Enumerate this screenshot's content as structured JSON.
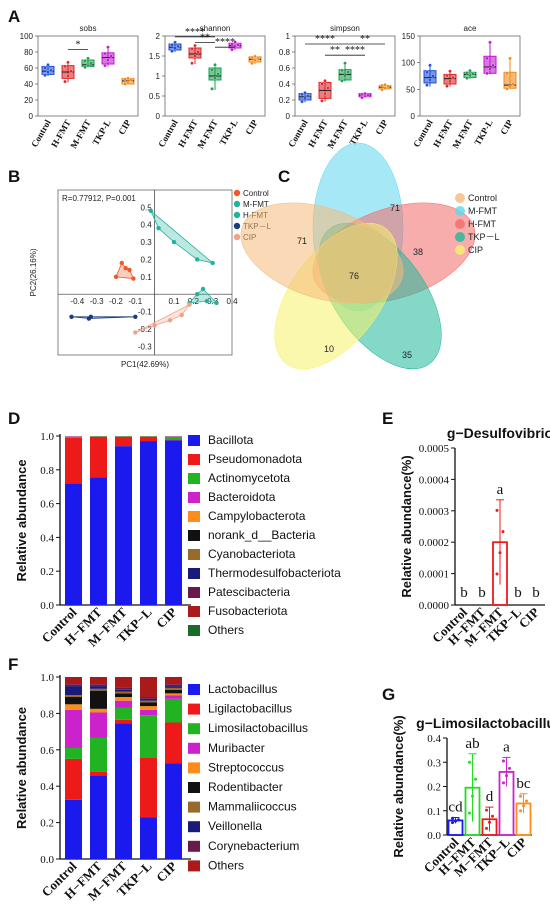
{
  "panels": {
    "A": "A",
    "B": "B",
    "C": "C",
    "D": "D",
    "E": "E",
    "F": "F",
    "G": "G"
  },
  "chart_data": [
    {
      "type": "box",
      "panel": "A",
      "title": "sobs",
      "categories": [
        "Control",
        "H-FMT",
        "M-FMT",
        "TKP-L",
        "CIP"
      ],
      "colors": [
        "#1f4fd8",
        "#e0262a",
        "#1aa04e",
        "#c21ad0",
        "#f08a1a"
      ],
      "ylim": [
        0,
        100
      ],
      "yticks": [
        0,
        20,
        40,
        60,
        80,
        100
      ],
      "boxes": [
        {
          "q1": 52,
          "med": 56,
          "q3": 62,
          "min": 50,
          "max": 65,
          "pts": [
            51,
            55,
            57,
            60,
            64
          ]
        },
        {
          "q1": 47,
          "med": 55,
          "q3": 63,
          "min": 42,
          "max": 68,
          "pts": [
            43,
            50,
            56,
            62,
            67
          ]
        },
        {
          "q1": 62,
          "med": 64,
          "q3": 70,
          "min": 61,
          "max": 73,
          "pts": [
            61,
            63,
            66,
            69,
            72
          ]
        },
        {
          "q1": 65,
          "med": 73,
          "q3": 79,
          "min": 62,
          "max": 88,
          "pts": [
            63,
            70,
            75,
            78,
            86
          ]
        },
        {
          "q1": 40,
          "med": 44,
          "q3": 47,
          "min": 39,
          "max": 48,
          "pts": [
            40,
            42,
            45,
            46,
            47
          ]
        }
      ],
      "significance": [
        {
          "from": 1,
          "to": 2,
          "label": "*",
          "y": 83
        }
      ]
    },
    {
      "type": "box",
      "panel": "A",
      "title": "shannon",
      "categories": [
        "Control",
        "H-FMT",
        "M-FMT",
        "TKP-L",
        "CIP"
      ],
      "colors": [
        "#1f4fd8",
        "#e0262a",
        "#1aa04e",
        "#c21ad0",
        "#f08a1a"
      ],
      "ylim": [
        0,
        2.0
      ],
      "yticks": [
        0.0,
        0.5,
        1.0,
        1.5,
        2.0
      ],
      "boxes": [
        {
          "q1": 1.65,
          "med": 1.72,
          "q3": 1.8,
          "min": 1.6,
          "max": 1.85,
          "pts": [
            1.62,
            1.7,
            1.74,
            1.78,
            1.84
          ]
        },
        {
          "q1": 1.45,
          "med": 1.55,
          "q3": 1.7,
          "min": 1.3,
          "max": 1.78,
          "pts": [
            1.32,
            1.5,
            1.6,
            1.68,
            1.76
          ]
        },
        {
          "q1": 0.9,
          "med": 1.0,
          "q3": 1.2,
          "min": 0.65,
          "max": 1.3,
          "pts": [
            0.68,
            0.95,
            1.05,
            1.15,
            1.28
          ]
        },
        {
          "q1": 1.7,
          "med": 1.76,
          "q3": 1.82,
          "min": 1.65,
          "max": 1.86,
          "pts": [
            1.66,
            1.74,
            1.78,
            1.8,
            1.85
          ]
        },
        {
          "q1": 1.35,
          "med": 1.42,
          "q3": 1.48,
          "min": 1.3,
          "max": 1.5,
          "pts": [
            1.32,
            1.4,
            1.44,
            1.46,
            1.49
          ]
        }
      ],
      "significance": [
        {
          "from": 0,
          "to": 2,
          "label": "****",
          "y": 1.98
        },
        {
          "from": 1,
          "to": 2,
          "label": "**",
          "y": 1.84
        },
        {
          "from": 2,
          "to": 3,
          "label": "****",
          "y": 1.72
        }
      ]
    },
    {
      "type": "box",
      "panel": "A",
      "title": "simpson",
      "categories": [
        "Control",
        "H-FMT",
        "M-FMT",
        "TKP-L",
        "CIP"
      ],
      "colors": [
        "#1f4fd8",
        "#e0262a",
        "#1aa04e",
        "#c21ad0",
        "#f08a1a"
      ],
      "ylim": [
        0,
        1.0
      ],
      "yticks": [
        0.0,
        0.2,
        0.4,
        0.6,
        0.8,
        1.0
      ],
      "boxes": [
        {
          "q1": 0.2,
          "med": 0.24,
          "q3": 0.28,
          "min": 0.17,
          "max": 0.3,
          "pts": [
            0.18,
            0.22,
            0.25,
            0.27,
            0.29
          ]
        },
        {
          "q1": 0.22,
          "med": 0.32,
          "q3": 0.42,
          "min": 0.18,
          "max": 0.45,
          "pts": [
            0.19,
            0.28,
            0.35,
            0.4,
            0.44
          ]
        },
        {
          "q1": 0.45,
          "med": 0.52,
          "q3": 0.58,
          "min": 0.43,
          "max": 0.68,
          "pts": [
            0.44,
            0.5,
            0.55,
            0.57,
            0.66
          ]
        },
        {
          "q1": 0.24,
          "med": 0.26,
          "q3": 0.28,
          "min": 0.23,
          "max": 0.29,
          "pts": [
            0.23,
            0.25,
            0.26,
            0.27,
            0.28
          ]
        },
        {
          "q1": 0.34,
          "med": 0.36,
          "q3": 0.38,
          "min": 0.33,
          "max": 0.39,
          "pts": [
            0.33,
            0.35,
            0.37,
            0.38,
            0.39
          ]
        }
      ],
      "significance": [
        {
          "from": 0,
          "to": 2,
          "label": "****",
          "y": 0.9
        },
        {
          "from": 2,
          "to": 4,
          "label": "**",
          "y": 0.9
        },
        {
          "from": 1,
          "to": 2,
          "label": "**",
          "y": 0.76
        },
        {
          "from": 2,
          "to": 3,
          "label": "****",
          "y": 0.76
        }
      ]
    },
    {
      "type": "box",
      "panel": "A",
      "title": "ace",
      "categories": [
        "Control",
        "H-FMT",
        "M-FMT",
        "TKP-L",
        "CIP"
      ],
      "colors": [
        "#1f4fd8",
        "#e0262a",
        "#1aa04e",
        "#c21ad0",
        "#f08a1a"
      ],
      "ylim": [
        0,
        150
      ],
      "yticks": [
        0,
        50,
        100,
        150
      ],
      "boxes": [
        {
          "q1": 62,
          "med": 72,
          "q3": 85,
          "min": 55,
          "max": 98,
          "pts": [
            58,
            68,
            75,
            82,
            95
          ]
        },
        {
          "q1": 60,
          "med": 70,
          "q3": 78,
          "min": 55,
          "max": 85,
          "pts": [
            56,
            65,
            72,
            76,
            84
          ]
        },
        {
          "q1": 72,
          "med": 78,
          "q3": 82,
          "min": 70,
          "max": 86,
          "pts": [
            71,
            76,
            79,
            81,
            85
          ]
        },
        {
          "q1": 80,
          "med": 92,
          "q3": 112,
          "min": 78,
          "max": 140,
          "pts": [
            80,
            88,
            95,
            108,
            138
          ]
        },
        {
          "q1": 52,
          "med": 58,
          "q3": 82,
          "min": 50,
          "max": 110,
          "pts": [
            51,
            55,
            60,
            80,
            108
          ]
        }
      ],
      "significance": []
    },
    {
      "type": "scatter",
      "panel": "B",
      "annotation": "R=0.77912, P=0.001",
      "xlabel": "PC1(42.69%)",
      "ylabel": "PC2(26.16%)",
      "xlim": [
        -0.5,
        0.4
      ],
      "ylim": [
        -0.35,
        0.6
      ],
      "xticks": [
        "-0.4",
        "-0.3",
        "-0.2",
        "-0.1",
        "0.1",
        "0.2",
        "0.3",
        "0.4"
      ],
      "xtick_values": [
        -0.4,
        -0.3,
        -0.2,
        -0.1,
        0.1,
        0.2,
        0.3,
        0.4
      ],
      "yticks": [
        "-0.3",
        "-0.2",
        "-0.1",
        "0.1",
        "0.2",
        "0.3",
        "0.4",
        "0.5"
      ],
      "ytick_values": [
        -0.3,
        -0.2,
        -0.1,
        0.1,
        0.2,
        0.3,
        0.4,
        0.5
      ],
      "series": [
        {
          "name": "Control",
          "color": "#f0582a",
          "points": [
            [
              -0.17,
              0.18
            ],
            [
              -0.15,
              0.15
            ],
            [
              -0.13,
              0.14
            ],
            [
              -0.11,
              0.09
            ],
            [
              -0.2,
              0.1
            ]
          ]
        },
        {
          "name": "M-FMT",
          "color": "#23b39d",
          "points": [
            [
              -0.02,
              0.48
            ],
            [
              0.1,
              0.3
            ],
            [
              0.22,
              0.2
            ],
            [
              0.3,
              0.18
            ],
            [
              0.02,
              0.38
            ]
          ]
        },
        {
          "name": "H-FMT",
          "color": "#23b39d",
          "points": [
            [
              0.22,
              0.0
            ],
            [
              0.25,
              0.03
            ],
            [
              0.27,
              -0.04
            ],
            [
              0.32,
              -0.05
            ],
            [
              0.18,
              -0.05
            ]
          ]
        },
        {
          "name": "TKP－L",
          "color": "#1b3c7a",
          "points": [
            [
              -0.43,
              -0.13
            ],
            [
              -0.34,
              -0.14
            ],
            [
              -0.33,
              -0.13
            ],
            [
              -0.1,
              -0.13
            ]
          ]
        },
        {
          "name": "CIP",
          "color": "#f0a288",
          "points": [
            [
              -0.1,
              -0.22
            ],
            [
              0.0,
              -0.18
            ],
            [
              0.08,
              -0.15
            ],
            [
              0.14,
              -0.12
            ],
            [
              0.18,
              -0.06
            ]
          ]
        }
      ]
    },
    {
      "type": "venn",
      "panel": "C",
      "sets": [
        {
          "name": "Control",
          "color": "#f5b97a"
        },
        {
          "name": "M-FMT",
          "color": "#5fd6ee"
        },
        {
          "name": "H-FMT",
          "color": "#f26a6a"
        },
        {
          "name": "TKP－L",
          "color": "#1fb89a"
        },
        {
          "name": "CIP",
          "color": "#f6f36a"
        }
      ],
      "counts": {
        "Control_only": 71,
        "M-FMT_only": 71,
        "H-FMT_only": 38,
        "TKP-L_only": 35,
        "CIP_only": 10,
        "all": 76
      }
    },
    {
      "type": "bar",
      "stacked": true,
      "panel": "D",
      "ylabel": "Relative abundance",
      "categories": [
        "Control",
        "H−FMT",
        "M−FMT",
        "TKP−L",
        "CIP"
      ],
      "ylim": [
        0,
        1.0
      ],
      "yticks": [
        "0.0",
        "0.2",
        "0.4",
        "0.6",
        "0.8",
        "1.0"
      ],
      "series": [
        {
          "name": "Bacillota",
          "color": "#1a1aee",
          "values": [
            0.72,
            0.755,
            0.94,
            0.97,
            0.975
          ]
        },
        {
          "name": "Pseudomonadota",
          "color": "#ee1a1a",
          "values": [
            0.27,
            0.24,
            0.055,
            0.025,
            0.005
          ]
        },
        {
          "name": "Actinomycetota",
          "color": "#22b322",
          "values": [
            0.005,
            0.002,
            0.002,
            0.002,
            0.015
          ]
        },
        {
          "name": "Bacteroidota",
          "color": "#cc22cc",
          "values": [
            0.002,
            0.001,
            0.001,
            0.001,
            0.002
          ]
        },
        {
          "name": "Campylobacterota",
          "color": "#ff8c1a",
          "values": [
            0.001,
            0.001,
            0.001,
            0.001,
            0.001
          ]
        },
        {
          "name": "norank_d__Bacteria",
          "color": "#111111",
          "values": [
            0.001,
            0.001,
            0.001,
            0.001,
            0.001
          ]
        },
        {
          "name": "Cyanobacteriota",
          "color": "#9a6a2a",
          "values": [
            0,
            0,
            0,
            0,
            0
          ]
        },
        {
          "name": "Thermodesulfobacteriota",
          "color": "#1a1a7a",
          "values": [
            0,
            0,
            0,
            0,
            0
          ]
        },
        {
          "name": "Patescibacteria",
          "color": "#6a1a4a",
          "values": [
            0,
            0,
            0,
            0,
            0
          ]
        },
        {
          "name": "Fusobacteriota",
          "color": "#aa1a1a",
          "values": [
            0,
            0,
            0,
            0,
            0
          ]
        },
        {
          "name": "Others",
          "color": "#1a6a2a",
          "values": [
            0,
            0,
            0,
            0,
            0
          ]
        }
      ]
    },
    {
      "type": "bar",
      "panel": "E",
      "title": "g−Desulfovibrio",
      "ylabel": "Relative abundance(%)",
      "categories": [
        "Control",
        "H−FMT",
        "M−FMT",
        "TKP−L",
        "CIP"
      ],
      "ylim": [
        0,
        0.0005
      ],
      "yticks": [
        "0.0000",
        "0.0001",
        "0.0002",
        "0.0003",
        "0.0004",
        "0.0005"
      ],
      "values": [
        0,
        0,
        0.0002,
        0,
        0
      ],
      "error": [
        0,
        0,
        0.000135,
        0,
        0
      ],
      "letters": [
        "b",
        "b",
        "a",
        "b",
        "b"
      ],
      "colors": [
        "#1a1aee",
        "#22b322",
        "#ee1a1a",
        "#cc22cc",
        "#ff8c1a"
      ]
    },
    {
      "type": "bar",
      "stacked": true,
      "panel": "F",
      "ylabel": "Relative abundance",
      "categories": [
        "Control",
        "H−FMT",
        "M−FMT",
        "TKP−L",
        "CIP"
      ],
      "ylim": [
        0,
        1.0
      ],
      "yticks": [
        "0.0",
        "0.2",
        "0.4",
        "0.6",
        "0.8",
        "1.0"
      ],
      "series": [
        {
          "name": "Lactobacillus",
          "color": "#1a1aee",
          "values": [
            0.325,
            0.46,
            0.745,
            0.23,
            0.525
          ]
        },
        {
          "name": "Ligilactobacillus",
          "color": "#ee1a1a",
          "values": [
            0.225,
            0.02,
            0.02,
            0.325,
            0.225
          ]
        },
        {
          "name": "Limosilactobacillus",
          "color": "#22b322",
          "values": [
            0.06,
            0.185,
            0.065,
            0.235,
            0.13
          ]
        },
        {
          "name": "Muribacter",
          "color": "#cc22cc",
          "values": [
            0.21,
            0.14,
            0.04,
            0.03,
            0.02
          ]
        },
        {
          "name": "Streptococcus",
          "color": "#ff8c1a",
          "values": [
            0.03,
            0.02,
            0.02,
            0.02,
            0.01
          ]
        },
        {
          "name": "Rodentibacter",
          "color": "#111111",
          "values": [
            0.04,
            0.1,
            0.02,
            0.02,
            0.02
          ]
        },
        {
          "name": "Mammaliicoccus",
          "color": "#9a6a2a",
          "values": [
            0.01,
            0.01,
            0.01,
            0.01,
            0.01
          ]
        },
        {
          "name": "Veillonella",
          "color": "#1a1a7a",
          "values": [
            0.05,
            0.015,
            0.01,
            0.01,
            0.01
          ]
        },
        {
          "name": "Corynebacterium",
          "color": "#6a1a4a",
          "values": [
            0.01,
            0.01,
            0.01,
            0.01,
            0.01
          ]
        },
        {
          "name": "Others",
          "color": "#aa1a1a",
          "values": [
            0.04,
            0.04,
            0.06,
            0.11,
            0.04
          ]
        }
      ]
    },
    {
      "type": "bar",
      "panel": "G",
      "title": "g−Limosilactobacillus",
      "ylabel": "Relative abundance(%)",
      "categories": [
        "Control",
        "H−FMT",
        "M−FMT",
        "TKP−L",
        "CIP"
      ],
      "ylim": [
        0,
        0.4
      ],
      "yticks": [
        "0.0",
        "0.1",
        "0.2",
        "0.3",
        "0.4"
      ],
      "values": [
        0.06,
        0.195,
        0.065,
        0.26,
        0.13
      ],
      "error": [
        0.012,
        0.14,
        0.05,
        0.06,
        0.04
      ],
      "letters": [
        "cd",
        "ab",
        "d",
        "a",
        "bc"
      ],
      "colors": [
        "#1a1aee",
        "#22dd22",
        "#ee1a1a",
        "#cc22cc",
        "#ff8c1a"
      ]
    }
  ]
}
